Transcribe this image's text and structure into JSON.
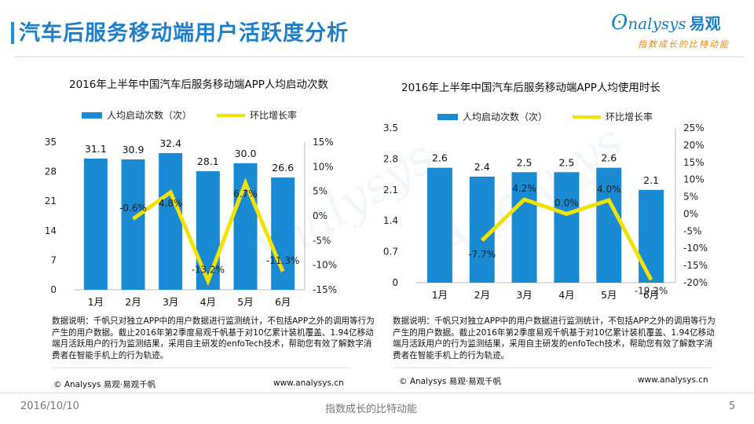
{
  "header": {
    "title": "汽车后服务移动端用户活跃度分析",
    "logo_text": "nalysys",
    "logo_cn": "易观",
    "logo_tagline": "指数成长的比特动能"
  },
  "colors": {
    "bar": "#1a8ad3",
    "line": "#f2e200",
    "accent": "#1f7fc9"
  },
  "chart_data": [
    {
      "type": "bar",
      "title": "2016年上半年中国汽车后服务移动端APP人均启动次数",
      "categories": [
        "1月",
        "2月",
        "3月",
        "4月",
        "5月",
        "6月"
      ],
      "series": [
        {
          "name": "人均启动次数（次）",
          "axis": "left",
          "values": [
            31.1,
            30.9,
            32.4,
            28.1,
            30.0,
            26.6
          ],
          "labels": [
            "31.1",
            "30.9",
            "32.4",
            "28.1",
            "30.0",
            "26.6"
          ]
        },
        {
          "name": "环比增长率",
          "axis": "right",
          "type": "line",
          "values": [
            null,
            -0.6,
            4.8,
            -13.2,
            6.7,
            -11.3
          ],
          "labels": [
            "",
            "-0.6%",
            "4.8%",
            "-13.2%",
            "6.7%",
            "-11.3%"
          ]
        }
      ],
      "y_left": {
        "min": 0,
        "max": 35,
        "ticks": [
          0,
          7,
          14,
          21,
          28,
          35
        ],
        "tick_labels": [
          "0",
          "7",
          "14",
          "21",
          "28",
          "35"
        ]
      },
      "y_right": {
        "min": -15,
        "max": 15,
        "ticks": [
          -15,
          -10,
          -5,
          0,
          5,
          10,
          15
        ],
        "tick_labels": [
          "-15%",
          "-10%",
          "-5%",
          "0%",
          "5%",
          "10%",
          "15%"
        ]
      },
      "note": "数据说明：千帆只对独立APP中的用户数据进行监测统计，不包括APP之外的调用等行为产生的用户数据。截止2016年第2季度易观千帆基于对10亿累计装机覆盖、1.94亿移动端月活跃用户的行为监测结果，采用自主研发的enfoTech技术，帮助您有效了解数字消费者在智能手机上的行为轨迹。",
      "credit_left": "© Analysys 易观·易观千帆",
      "credit_right": "www.analysys.cn"
    },
    {
      "type": "bar",
      "title": "2016年上半年中国汽车后服务移动端APP人均使用时长",
      "categories": [
        "1月",
        "2月",
        "3月",
        "4月",
        "5月",
        "6月"
      ],
      "series": [
        {
          "name": "人均启动次数（次）",
          "axis": "left",
          "values": [
            2.6,
            2.4,
            2.5,
            2.5,
            2.6,
            2.1
          ],
          "labels": [
            "2.6",
            "2.4",
            "2.5",
            "2.5",
            "2.6",
            "2.1"
          ]
        },
        {
          "name": "环比增长率",
          "axis": "right",
          "type": "line",
          "values": [
            null,
            -7.7,
            4.2,
            0.0,
            4.0,
            -19.2
          ],
          "labels": [
            "",
            "-7.7%",
            "4.2%",
            "0.0%",
            "4.0%",
            "-19.2%"
          ]
        }
      ],
      "y_left": {
        "min": 0,
        "max": 3.5,
        "ticks": [
          0,
          0.7,
          1.4,
          2.1,
          2.8,
          3.5
        ],
        "tick_labels": [
          "0",
          "0.7",
          "1.4",
          "2.1",
          "2.8",
          "3.5"
        ]
      },
      "y_right": {
        "min": -20,
        "max": 25,
        "ticks": [
          -20,
          -15,
          -10,
          -5,
          0,
          5,
          10,
          15,
          20,
          25
        ],
        "tick_labels": [
          "-20%",
          "-15%",
          "-10%",
          "-5%",
          "0%",
          "5%",
          "10%",
          "15%",
          "20%",
          "25%"
        ]
      },
      "note": "数据说明：千帆只对独立APP中的用户数据进行监测统计，不包括APP之外的调用等行为产生的用户数据。截止2016年第2季度易观千帆基于对10亿累计装机覆盖、1.94亿移动端月活跃用户的行为监测结果，采用自主研发的enfoTech技术，帮助您有效了解数字消费者在智能手机上的行为轨迹。",
      "credit_left": "© Analysys 易观·易观千帆",
      "credit_right": "www.analysys.cn"
    }
  ],
  "footer": {
    "date": "2016/10/10",
    "center": "指数成长的比特动能",
    "page": "5"
  }
}
